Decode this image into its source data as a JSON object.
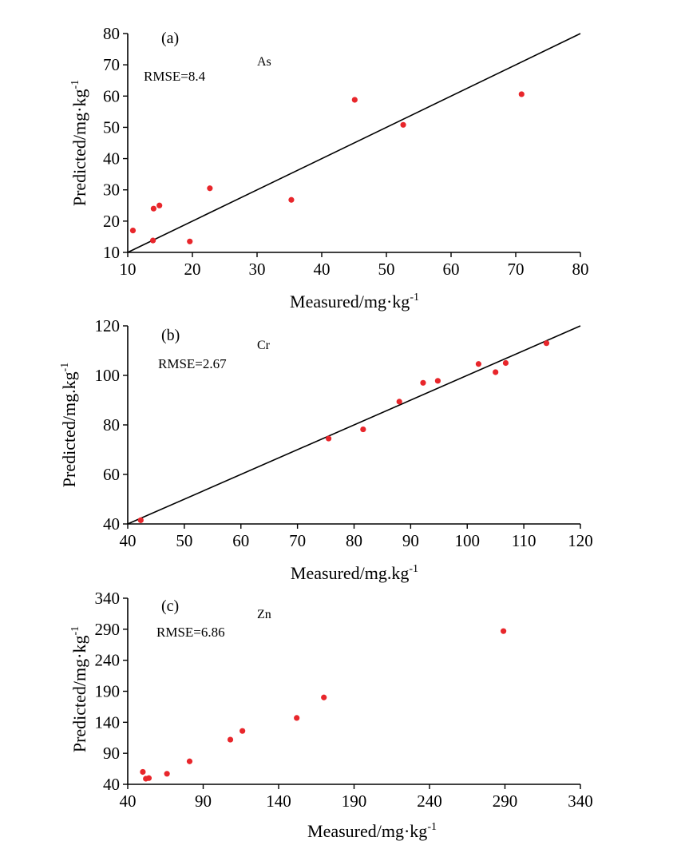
{
  "chart_data": [
    {
      "type": "scatter",
      "panel_label": "(a)",
      "element": "As",
      "rmse": "RMSE=8.4",
      "xlabel": "Measured/mg·kg",
      "xlabel_sup": "-1",
      "ylabel": "Predicted/mg·kg",
      "ylabel_sup": "-1",
      "xlim": [
        10,
        80
      ],
      "ylim": [
        10,
        80
      ],
      "xticks": [
        10,
        20,
        30,
        40,
        50,
        60,
        70,
        80
      ],
      "yticks": [
        10,
        20,
        30,
        40,
        50,
        60,
        70,
        80
      ],
      "one_to_one_line": true,
      "point_color": "#e8262b",
      "x": [
        10.8,
        13.9,
        14.0,
        14.9,
        19.6,
        22.7,
        35.3,
        45.1,
        52.6,
        70.9
      ],
      "y": [
        17.0,
        13.8,
        24.0,
        25.0,
        13.5,
        30.5,
        26.8,
        58.8,
        50.8,
        60.6
      ]
    },
    {
      "type": "scatter",
      "panel_label": "(b)",
      "element": "Cr",
      "rmse": "RMSE=2.67",
      "xlabel": "Measured/mg.kg",
      "xlabel_sup": "-1",
      "ylabel": "Predicted/mg.kg",
      "ylabel_sup": "-1",
      "xlim": [
        40,
        120
      ],
      "ylim": [
        40,
        120
      ],
      "xticks": [
        40,
        50,
        60,
        70,
        80,
        90,
        100,
        110,
        120
      ],
      "yticks": [
        40,
        60,
        80,
        100,
        120
      ],
      "one_to_one_line": true,
      "point_color": "#e8262b",
      "x": [
        42.3,
        75.5,
        81.6,
        88.0,
        92.2,
        94.8,
        102.0,
        105.0,
        106.8,
        114.0
      ],
      "y": [
        41.5,
        74.5,
        78.2,
        89.4,
        97.0,
        97.8,
        104.6,
        101.3,
        105.0,
        113.0
      ]
    },
    {
      "type": "scatter",
      "panel_label": "(c)",
      "element": "Zn",
      "rmse": "RMSE=6.86",
      "xlabel": "Measured/mg·kg",
      "xlabel_sup": "-1",
      "ylabel": "Predicted/mg·kg",
      "ylabel_sup": "-1",
      "xlim": [
        40,
        340
      ],
      "ylim": [
        40,
        340
      ],
      "xticks": [
        40,
        90,
        140,
        190,
        240,
        290,
        340
      ],
      "yticks": [
        40,
        90,
        140,
        190,
        240,
        290,
        340
      ],
      "one_to_one_line": false,
      "point_color": "#e8262b",
      "x": [
        50,
        52,
        54,
        66,
        81,
        108,
        116,
        152,
        170,
        289
      ],
      "y": [
        60,
        49,
        50,
        57,
        77,
        112,
        126,
        147,
        180,
        287
      ]
    }
  ]
}
